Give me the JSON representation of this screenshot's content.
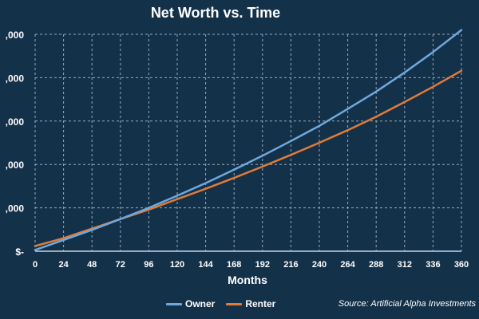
{
  "chart_data": {
    "type": "line",
    "title": "Net Worth vs. Time",
    "xlabel": "Months",
    "ylabel": "",
    "x": [
      0,
      24,
      48,
      72,
      96,
      120,
      144,
      168,
      192,
      216,
      240,
      264,
      288,
      312,
      336,
      360
    ],
    "xlim": [
      0,
      360
    ],
    "ylim": [
      0,
      5
    ],
    "y_tick_values": [
      0,
      1,
      2,
      3,
      4,
      5
    ],
    "y_tick_labels": [
      "$-",
      ",000",
      ",000",
      ",000",
      ",000",
      ",000"
    ],
    "grid": true,
    "legend_position": "bottom",
    "series": [
      {
        "name": "Owner",
        "color": "#6fa8dc",
        "values": [
          0.03,
          0.26,
          0.49,
          0.74,
          1.0,
          1.28,
          1.57,
          1.88,
          2.2,
          2.54,
          2.89,
          3.28,
          3.68,
          4.12,
          4.59,
          5.1
        ]
      },
      {
        "name": "Renter",
        "color": "#e07b39",
        "values": [
          0.12,
          0.3,
          0.52,
          0.74,
          0.96,
          1.2,
          1.44,
          1.69,
          1.95,
          2.22,
          2.5,
          2.79,
          3.1,
          3.44,
          3.79,
          4.16
        ]
      }
    ]
  },
  "source": "Source: Artificial Alpha Investments",
  "colors": {
    "background": "#14314a",
    "grid": "#9aa9b7",
    "text": "#ffffff"
  }
}
